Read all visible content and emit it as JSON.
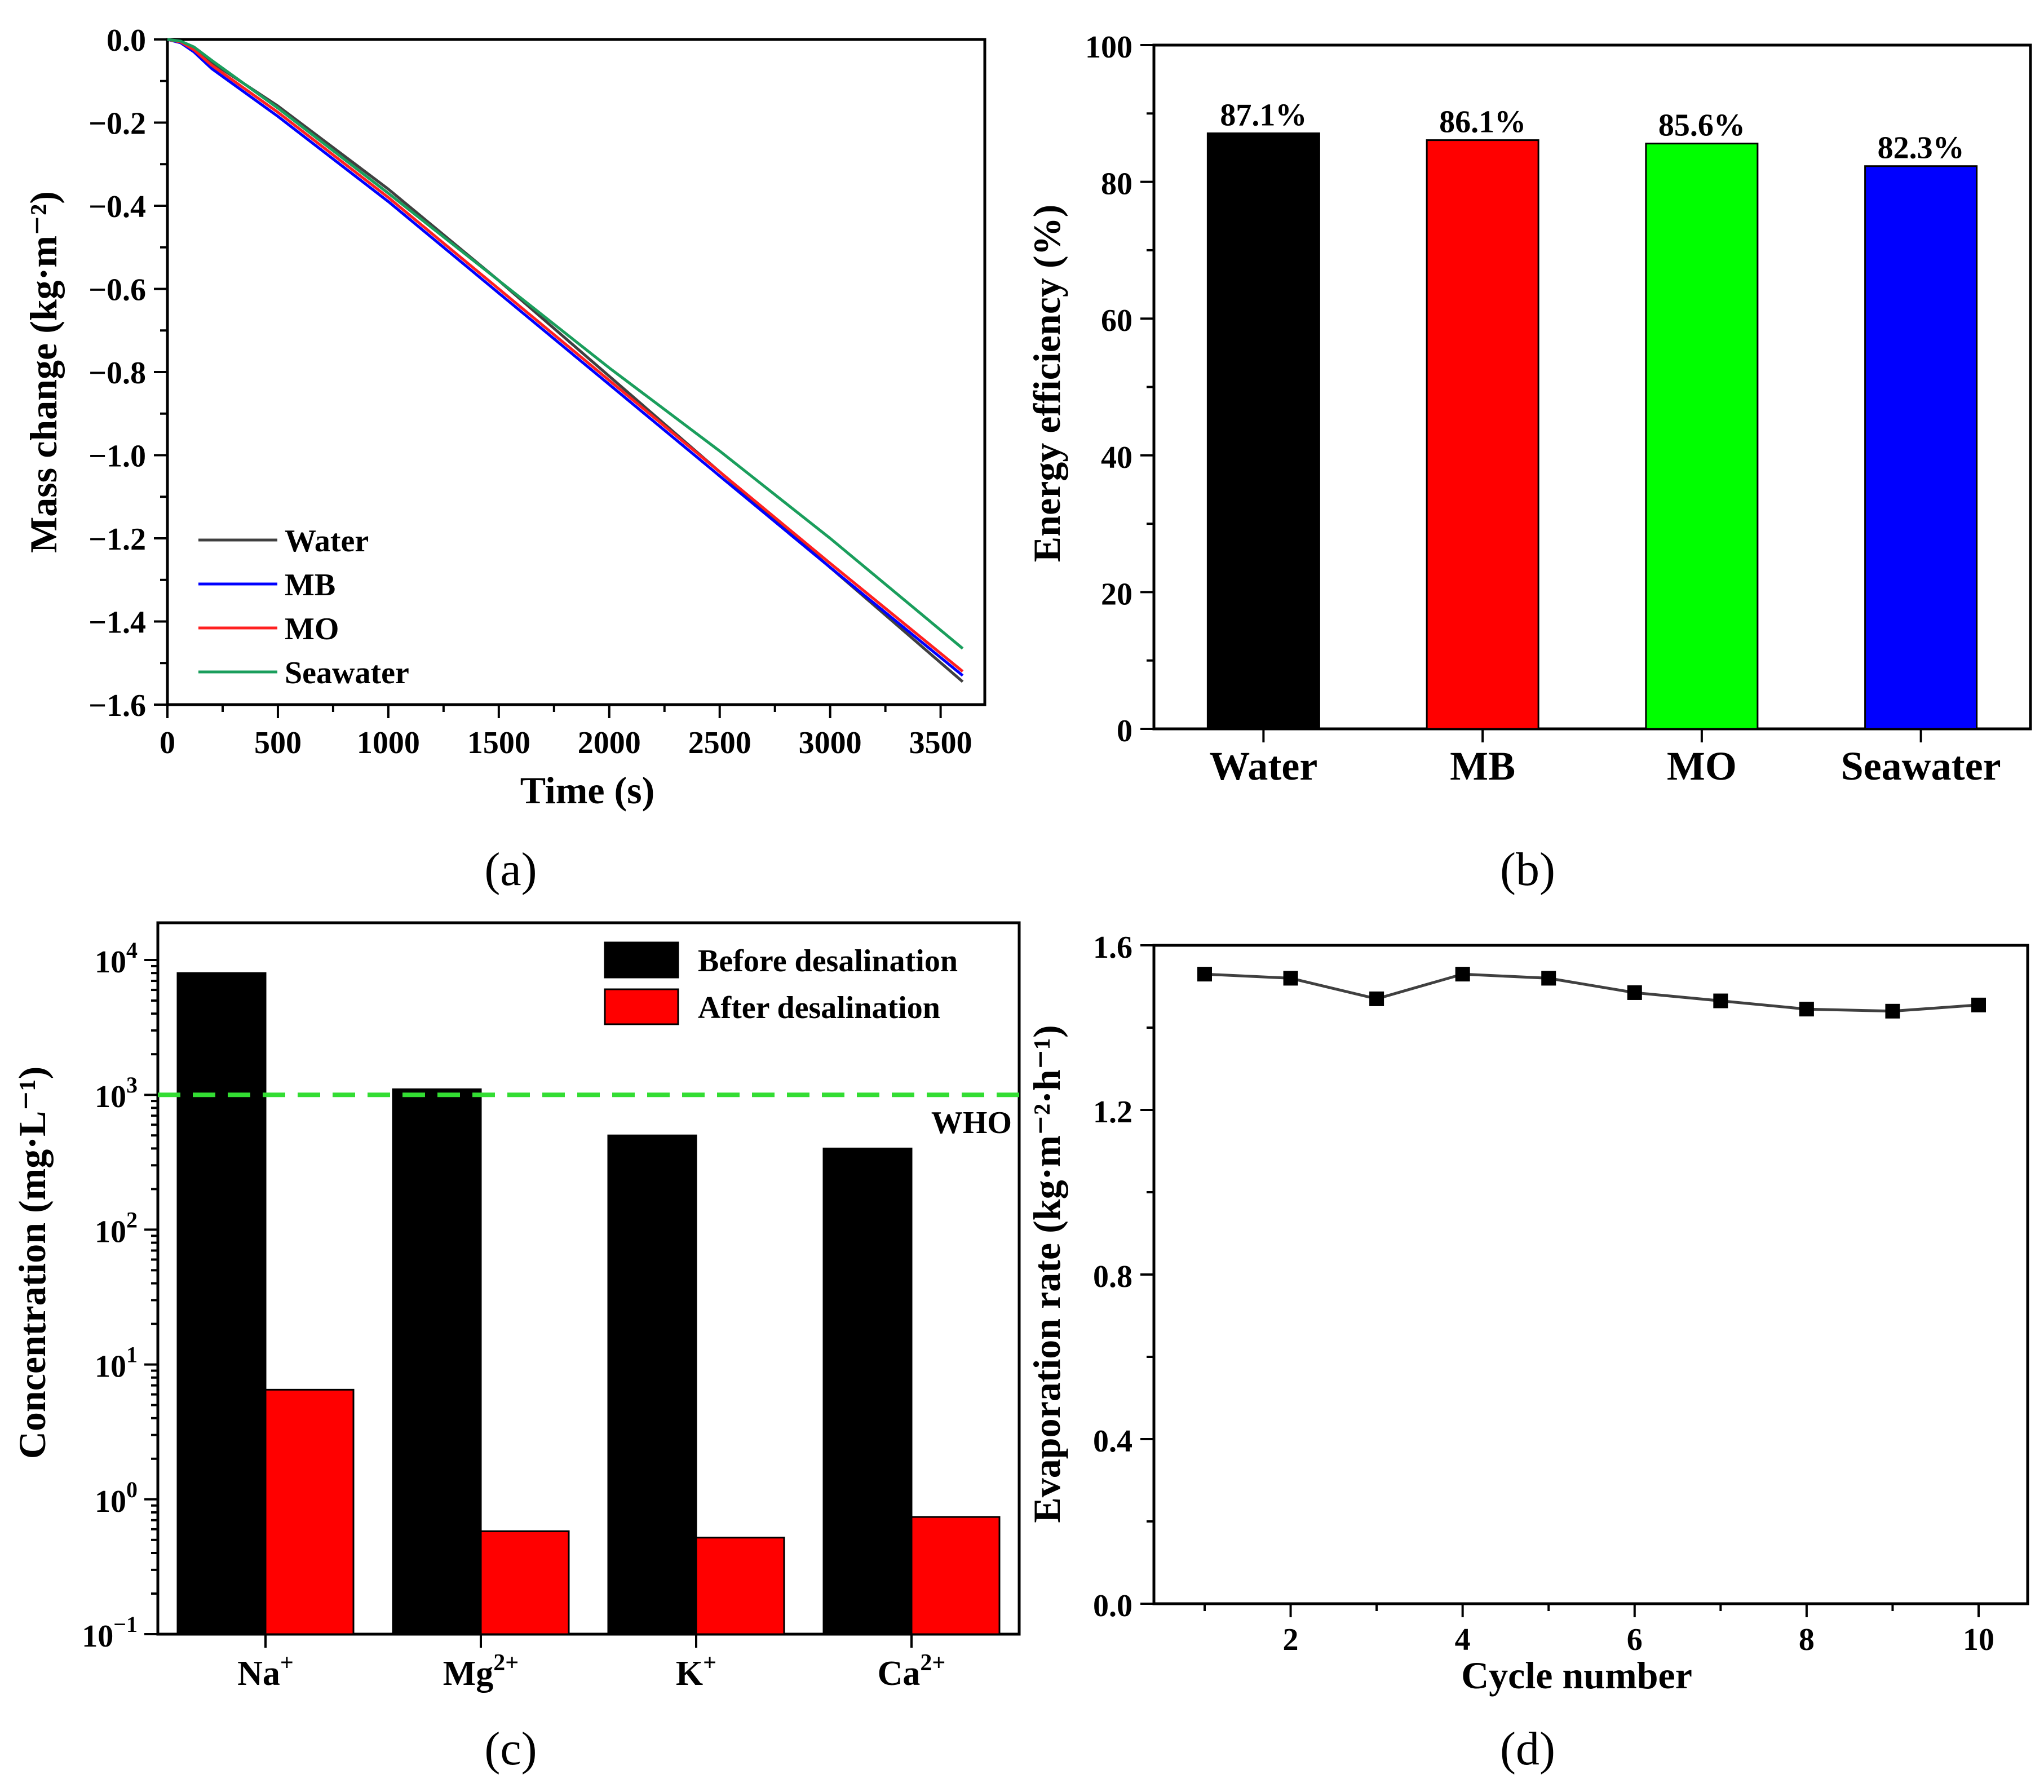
{
  "chart_data": [
    {
      "panel": "(a)",
      "type": "line",
      "title": "",
      "xlabel": "Time (s)",
      "ylabel": "Mass change (kg·m⁻²)",
      "xlim": [
        0,
        3700
      ],
      "ylim": [
        -1.6,
        0.0
      ],
      "x_ticks": [
        "0",
        "500",
        "1000",
        "1500",
        "2000",
        "2500",
        "3000",
        "3500"
      ],
      "x_tick_values": [
        0,
        500,
        1000,
        1500,
        2000,
        2500,
        3000,
        3500
      ],
      "y_ticks": [
        "0.0",
        "−0.2",
        "−0.4",
        "−0.6",
        "−0.8",
        "−1.0",
        "−1.2",
        "−1.4",
        "−1.6"
      ],
      "y_tick_values": [
        0.0,
        -0.2,
        -0.4,
        -0.6,
        -0.8,
        -1.0,
        -1.2,
        -1.4,
        -1.6
      ],
      "legend_position": "bottom-left",
      "series": [
        {
          "name": "Water",
          "color": "#404040",
          "x": [
            0,
            60,
            120,
            200,
            500,
            1000,
            1500,
            2000,
            2500,
            3000,
            3600
          ],
          "y": [
            0.0,
            -0.005,
            -0.02,
            -0.055,
            -0.16,
            -0.36,
            -0.58,
            -0.81,
            -1.04,
            -1.27,
            -1.545
          ]
        },
        {
          "name": "MB",
          "color": "#0000ff",
          "x": [
            0,
            60,
            120,
            200,
            500,
            1000,
            1500,
            2000,
            2500,
            3000,
            3600
          ],
          "y": [
            0.0,
            -0.008,
            -0.03,
            -0.07,
            -0.185,
            -0.39,
            -0.61,
            -0.83,
            -1.05,
            -1.27,
            -1.53
          ]
        },
        {
          "name": "MO",
          "color": "#ff2020",
          "x": [
            0,
            60,
            120,
            200,
            500,
            1000,
            1500,
            2000,
            2500,
            3000,
            3600
          ],
          "y": [
            0.0,
            -0.006,
            -0.025,
            -0.062,
            -0.175,
            -0.38,
            -0.6,
            -0.82,
            -1.04,
            -1.26,
            -1.52
          ]
        },
        {
          "name": "Seawater",
          "color": "#1a9e5c",
          "x": [
            0,
            60,
            120,
            200,
            500,
            1000,
            1500,
            2000,
            2500,
            3000,
            3600
          ],
          "y": [
            0.0,
            -0.004,
            -0.018,
            -0.05,
            -0.165,
            -0.37,
            -0.58,
            -0.79,
            -0.99,
            -1.2,
            -1.465
          ]
        }
      ],
      "caption": "(a)"
    },
    {
      "panel": "(b)",
      "type": "bar",
      "title": "",
      "xlabel": "",
      "ylabel": "Energy efficiency (%)",
      "ylim": [
        0,
        100
      ],
      "y_ticks": [
        "0",
        "20",
        "40",
        "60",
        "80",
        "100"
      ],
      "y_tick_values": [
        0,
        20,
        40,
        60,
        80,
        100
      ],
      "categories": [
        "Water",
        "MB",
        "MO",
        "Seawater"
      ],
      "values": [
        87.1,
        86.1,
        85.6,
        82.3
      ],
      "data_labels": [
        "87.1%",
        "86.1%",
        "85.6%",
        "82.3%"
      ],
      "colors": [
        "#000000",
        "#ff0000",
        "#00ff00",
        "#0000ff"
      ],
      "caption": "(b)"
    },
    {
      "panel": "(c)",
      "type": "bar",
      "title": "",
      "xlabel": "",
      "ylabel": "Concentration (mg·L⁻¹)",
      "yscale": "log",
      "ylim": [
        0.1,
        10000
      ],
      "y_tick_values": [
        0.1,
        1,
        10,
        100,
        1000,
        10000
      ],
      "y_tick_base": "10",
      "y_tick_exponents": [
        "−1",
        "0",
        "1",
        "2",
        "3",
        "4"
      ],
      "categories": [
        "Na",
        "Mg",
        "K",
        "Ca"
      ],
      "category_superscripts": [
        "+",
        "2+",
        "+",
        "2+"
      ],
      "series": [
        {
          "name": "Before desalination",
          "color": "#000000",
          "values": [
            8000,
            1100,
            500,
            400
          ]
        },
        {
          "name": "After desalination",
          "color": "#ff0000",
          "values": [
            6.5,
            0.58,
            0.52,
            0.74
          ]
        }
      ],
      "reference_line": {
        "label": "WHO",
        "value": 1000,
        "color": "#33dd33",
        "style": "dashed"
      },
      "legend_position": "top-right",
      "caption": "(c)"
    },
    {
      "panel": "(d)",
      "type": "line",
      "title": "",
      "xlabel": "Cycle number",
      "ylabel": "Evaporation rate (kg·m⁻²·h⁻¹)",
      "xlim": [
        0,
        10.5
      ],
      "ylim": [
        0.0,
        1.6
      ],
      "x_ticks": [
        "2",
        "4",
        "6",
        "8",
        "10"
      ],
      "x_tick_values": [
        2,
        4,
        6,
        8,
        10
      ],
      "y_ticks": [
        "0.0",
        "0.4",
        "0.8",
        "1.2",
        "1.6"
      ],
      "y_tick_values": [
        0.0,
        0.4,
        0.8,
        1.2,
        1.6
      ],
      "series": [
        {
          "name": "Evaporation rate",
          "color": "#000000",
          "line_color": "#404040",
          "x": [
            1,
            2,
            3,
            4,
            5,
            6,
            7,
            8,
            9,
            10
          ],
          "y": [
            1.53,
            1.52,
            1.47,
            1.53,
            1.52,
            1.485,
            1.465,
            1.445,
            1.44,
            1.455
          ]
        }
      ],
      "caption": "(d)"
    }
  ]
}
